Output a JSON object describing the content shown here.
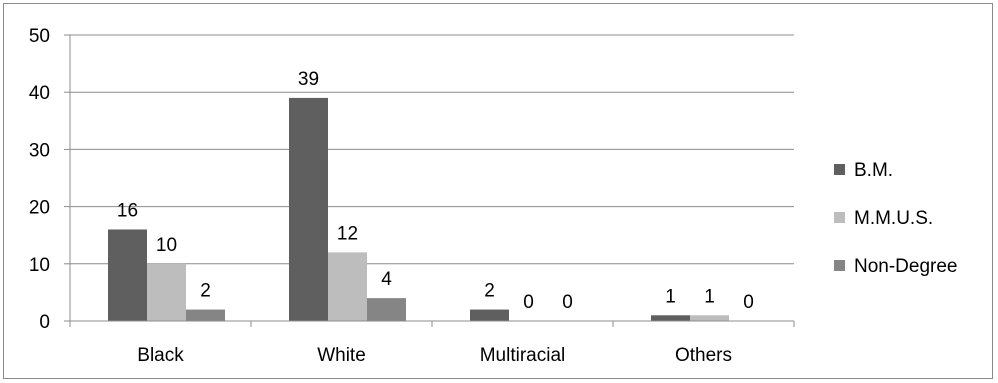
{
  "chart_data": {
    "type": "bar",
    "title": "",
    "xlabel": "",
    "ylabel": "",
    "categories": [
      "Black",
      "White",
      "Multiracial",
      "Others"
    ],
    "series": [
      {
        "name": "B.M.",
        "values": [
          16,
          39,
          2,
          1
        ],
        "color": "#5f5f5f"
      },
      {
        "name": "M.M.U.S.",
        "values": [
          10,
          12,
          0,
          1
        ],
        "color": "#bdbdbd"
      },
      {
        "name": "Non-Degree",
        "values": [
          2,
          4,
          0,
          0
        ],
        "color": "#858585"
      }
    ],
    "ylim": [
      0,
      50
    ],
    "yticks": [
      0,
      10,
      20,
      30,
      40,
      50
    ],
    "grid": true,
    "legend_position": "right",
    "data_labels": true
  }
}
